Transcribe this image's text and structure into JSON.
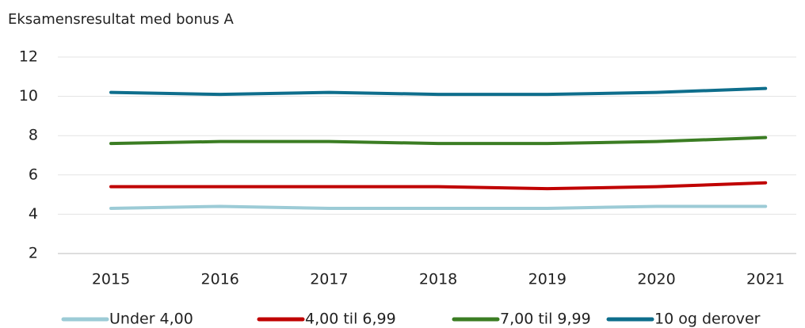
{
  "chart_data": {
    "type": "line",
    "title": "Eksamensresultat med bonus A",
    "categories": [
      "2015",
      "2016",
      "2017",
      "2018",
      "2019",
      "2020",
      "2021"
    ],
    "series": [
      {
        "name": "Under 4,00",
        "color": "#9ccbd6",
        "values": [
          4.3,
          4.4,
          4.3,
          4.3,
          4.3,
          4.4,
          4.4
        ]
      },
      {
        "name": "4,00 til 6,99",
        "color": "#c00000",
        "values": [
          5.4,
          5.4,
          5.4,
          5.4,
          5.3,
          5.4,
          5.6
        ]
      },
      {
        "name": "7,00 til 9,99",
        "color": "#3b7d23",
        "values": [
          7.6,
          7.7,
          7.7,
          7.6,
          7.6,
          7.7,
          7.9
        ]
      },
      {
        "name": "10 og derover",
        "color": "#0e6e8c",
        "values": [
          10.2,
          10.1,
          10.2,
          10.1,
          10.1,
          10.2,
          10.4
        ]
      }
    ],
    "ylim": [
      2,
      12
    ],
    "yticks": [
      2,
      4,
      6,
      8,
      10,
      12
    ],
    "grid": true,
    "legend": "bottom"
  }
}
